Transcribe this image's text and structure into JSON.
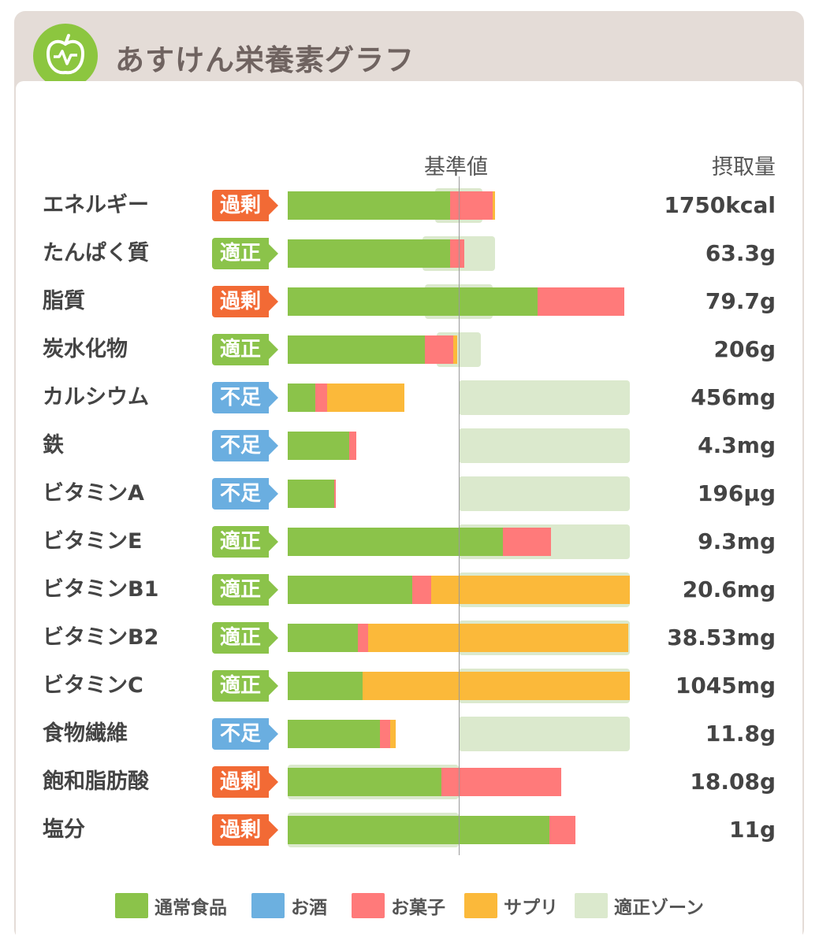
{
  "app": {
    "title": "あすけん栄養素グラフ",
    "logo_icon": "apple-chart-icon"
  },
  "headers": {
    "reference": "基準値",
    "intake": "摂取量"
  },
  "colors": {
    "normal_food": "#8bc34a",
    "alcohol": "#6cb0e0",
    "snacks": "#ff7a7a",
    "supplement": "#fbb93a",
    "zone": "#dbe9cd",
    "status_excess": "#f26a35",
    "status_ok": "#8bc34a",
    "status_short": "#6aaee0"
  },
  "legend": [
    {
      "label": "通常食品",
      "color": "#8bc34a"
    },
    {
      "label": "お酒",
      "color": "#6cb0e0"
    },
    {
      "label": "お菓子",
      "color": "#ff7a7a"
    },
    {
      "label": "サプリ",
      "color": "#fbb93a"
    },
    {
      "label": "適正ゾーン",
      "color": "#dbe9cd"
    }
  ],
  "chart_data": {
    "type": "bar",
    "orientation": "horizontal",
    "stacked": true,
    "unit_note": "percent of reference value (基準値 = 100)",
    "reference_value": 100,
    "xlim": [
      0,
      200
    ],
    "categories": [
      "エネルギー",
      "たんぱく質",
      "脂質",
      "炭水化物",
      "カルシウム",
      "鉄",
      "ビタミンA",
      "ビタミンE",
      "ビタミンB1",
      "ビタミンB2",
      "ビタミンC",
      "食物繊維",
      "飽和脂肪酸",
      "塩分"
    ],
    "status": [
      "過剰",
      "適正",
      "過剰",
      "適正",
      "不足",
      "不足",
      "不足",
      "適正",
      "適正",
      "適正",
      "適正",
      "不足",
      "過剰",
      "過剰"
    ],
    "intake": [
      "1750kcal",
      "63.3g",
      "79.7g",
      "206g",
      "456mg",
      "4.3mg",
      "196µg",
      "9.3mg",
      "20.6mg",
      "38.53mg",
      "1045mg",
      "11.8g",
      "18.08g",
      "11g"
    ],
    "series": [
      {
        "name": "通常食品",
        "values": [
          95,
          95,
          146,
          80,
          16,
          36,
          27,
          126,
          73,
          41,
          44,
          54,
          90,
          153
        ]
      },
      {
        "name": "お酒",
        "values": [
          0,
          0,
          0,
          0,
          0,
          0,
          0,
          0,
          0,
          0,
          0,
          0,
          0,
          0
        ]
      },
      {
        "name": "お菓子",
        "values": [
          25,
          8,
          51,
          17,
          7,
          4,
          1,
          28,
          11,
          6,
          0,
          6,
          70,
          15
        ]
      },
      {
        "name": "サプリ",
        "values": [
          1,
          0,
          0,
          2,
          45,
          0,
          0,
          0,
          116,
          152,
          156,
          3,
          0,
          0
        ]
      }
    ],
    "zones": [
      [
        86,
        114
      ],
      [
        79,
        121
      ],
      [
        80,
        120
      ],
      [
        87,
        113
      ],
      [
        100,
        200
      ],
      [
        100,
        200
      ],
      [
        100,
        200
      ],
      [
        100,
        200
      ],
      [
        100,
        200
      ],
      [
        100,
        200
      ],
      [
        100,
        200
      ],
      [
        100,
        200
      ],
      [
        0,
        100
      ],
      [
        0,
        100
      ]
    ]
  }
}
